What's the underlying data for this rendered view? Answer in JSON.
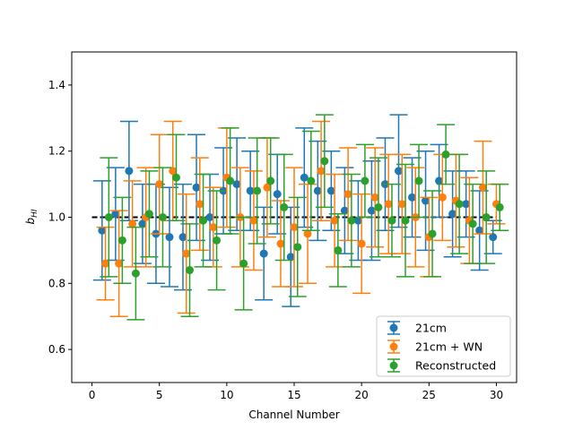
{
  "chart_data": {
    "type": "scatter",
    "title": "",
    "xlabel": "Channel Number",
    "ylabel": "b_HI",
    "ylabel_main": "b",
    "ylabel_sub": "HI",
    "xlim": [
      -1.5,
      31.5
    ],
    "ylim": [
      0.5,
      1.5
    ],
    "xticks": [
      0,
      5,
      10,
      15,
      20,
      25,
      30
    ],
    "yticks": [
      0.6,
      0.8,
      1.0,
      1.2,
      1.4
    ],
    "xtick_labels": [
      "0",
      "5",
      "10",
      "15",
      "20",
      "25",
      "30"
    ],
    "ytick_labels": [
      "0.6",
      "0.8",
      "1.0",
      "1.2",
      "1.4"
    ],
    "reference_line": {
      "y": 1.0,
      "style": "dashed",
      "color": "#000000"
    },
    "legend_position": "lower-right",
    "series": [
      {
        "name": "21cm",
        "color": "#1f77b4",
        "offset": -0.25,
        "x": [
          1,
          2,
          3,
          4,
          5,
          6,
          7,
          8,
          9,
          10,
          11,
          12,
          13,
          14,
          15,
          16,
          17,
          18,
          19,
          20,
          21,
          22,
          23,
          24,
          25,
          26,
          27,
          28,
          29,
          30
        ],
        "y": [
          0.96,
          1.01,
          1.14,
          0.98,
          0.95,
          0.94,
          0.94,
          1.09,
          1.0,
          1.08,
          1.1,
          1.08,
          0.89,
          1.07,
          0.88,
          1.12,
          1.08,
          1.08,
          1.02,
          0.99,
          1.02,
          1.1,
          1.14,
          1.06,
          1.05,
          1.11,
          1.01,
          1.04,
          0.96,
          0.94
        ],
        "yerr": [
          0.15,
          0.14,
          0.15,
          0.12,
          0.15,
          0.15,
          0.16,
          0.16,
          0.13,
          0.13,
          0.14,
          0.12,
          0.14,
          0.12,
          0.15,
          0.15,
          0.15,
          0.12,
          0.13,
          0.12,
          0.15,
          0.14,
          0.17,
          0.12,
          0.15,
          0.11,
          0.13,
          0.1,
          0.12,
          0.05
        ]
      },
      {
        "name": "21cm + WN",
        "color": "#ff7f0e",
        "offset": 0.0,
        "x": [
          1,
          2,
          3,
          4,
          5,
          6,
          7,
          8,
          9,
          10,
          11,
          12,
          13,
          14,
          15,
          16,
          17,
          18,
          19,
          20,
          21,
          22,
          23,
          24,
          25,
          26,
          27,
          28,
          29,
          30
        ],
        "y": [
          0.86,
          0.86,
          0.98,
          1.0,
          1.1,
          1.14,
          0.89,
          1.04,
          0.97,
          1.12,
          1.0,
          0.99,
          1.09,
          0.92,
          0.97,
          0.95,
          1.14,
          0.99,
          1.07,
          0.92,
          1.06,
          1.04,
          1.04,
          1.0,
          0.94,
          1.06,
          1.05,
          0.99,
          1.09,
          1.04
        ],
        "yerr": [
          0.11,
          0.16,
          0.13,
          0.15,
          0.15,
          0.15,
          0.18,
          0.14,
          0.12,
          0.15,
          0.15,
          0.15,
          0.15,
          0.13,
          0.18,
          0.15,
          0.15,
          0.14,
          0.14,
          0.15,
          0.15,
          0.15,
          0.15,
          0.15,
          0.12,
          0.13,
          0.14,
          0.13,
          0.14,
          0.06
        ]
      },
      {
        "name": "Reconstructed",
        "color": "#2ca02c",
        "offset": 0.25,
        "x": [
          1,
          2,
          3,
          4,
          5,
          6,
          7,
          8,
          9,
          10,
          11,
          12,
          13,
          14,
          15,
          16,
          17,
          18,
          19,
          20,
          21,
          22,
          23,
          24,
          25,
          26,
          27,
          28,
          29,
          30
        ],
        "y": [
          1.0,
          0.93,
          0.83,
          1.01,
          1.0,
          1.12,
          0.84,
          0.99,
          0.93,
          1.11,
          0.86,
          1.08,
          1.11,
          1.03,
          0.91,
          1.11,
          1.17,
          0.9,
          0.99,
          1.11,
          1.03,
          0.99,
          0.99,
          1.11,
          0.95,
          1.19,
          1.04,
          0.98,
          1.0,
          1.03
        ],
        "yerr": [
          0.18,
          0.13,
          0.14,
          0.13,
          0.15,
          0.13,
          0.14,
          0.14,
          0.15,
          0.16,
          0.14,
          0.16,
          0.13,
          0.16,
          0.15,
          0.15,
          0.14,
          0.11,
          0.14,
          0.11,
          0.15,
          0.11,
          0.17,
          0.11,
          0.13,
          0.09,
          0.15,
          0.12,
          0.14,
          0.07
        ]
      }
    ]
  }
}
